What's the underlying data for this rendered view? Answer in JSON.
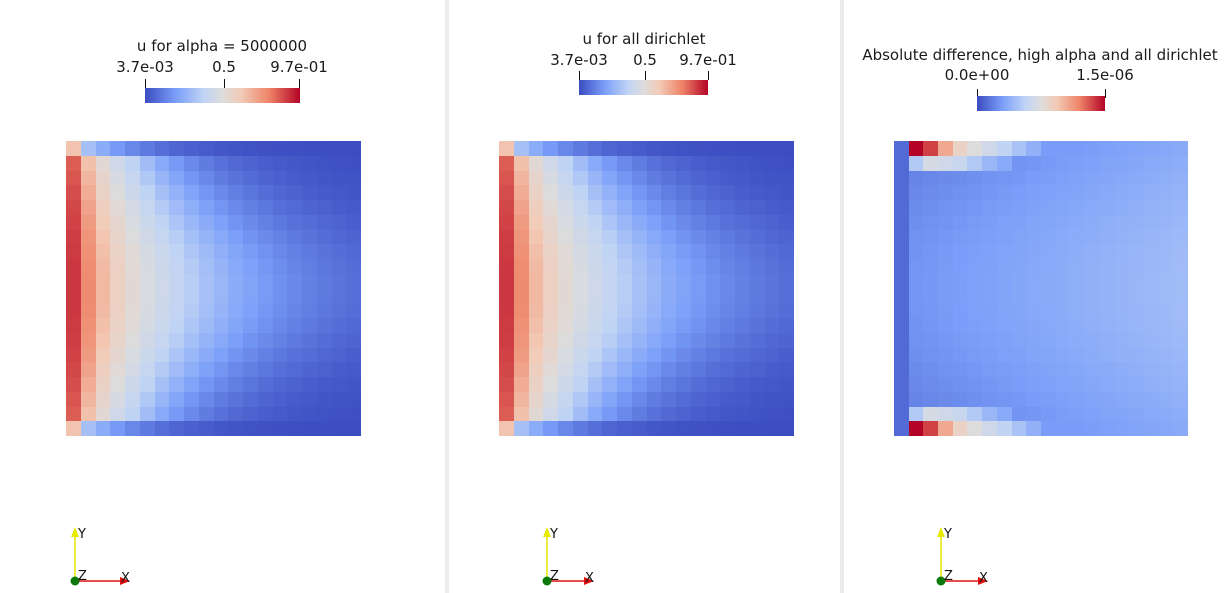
{
  "views": [
    {
      "colorbar": {
        "title": "u for alpha = 5000000",
        "labels": [
          "3.7e-03",
          "0.5",
          "9.7e-01"
        ]
      },
      "axes": {
        "x": "X",
        "y": "Y",
        "z": "Z"
      }
    },
    {
      "colorbar": {
        "title": "u for all dirichlet",
        "labels": [
          "3.7e-03",
          "0.5",
          "9.7e-01"
        ]
      },
      "axes": {
        "x": "X",
        "y": "Y",
        "z": "Z"
      }
    },
    {
      "colorbar": {
        "title": "Absolute difference, high alpha and all dirichlet",
        "labels": [
          "0.0e+00",
          "1.5e-06"
        ]
      },
      "axes": {
        "x": "X",
        "y": "Y",
        "z": "Z"
      }
    }
  ],
  "colormap": {
    "name": "cool-to-warm",
    "stops": [
      "#3b4cc0",
      "#7b9ff9",
      "#c0d4f5",
      "#dddcdc",
      "#f2cbb7",
      "#ee8468",
      "#b40426"
    ]
  },
  "axis_colors": {
    "x": "#e01010",
    "y": "#e8e800",
    "z": "#0a7a0a"
  }
}
